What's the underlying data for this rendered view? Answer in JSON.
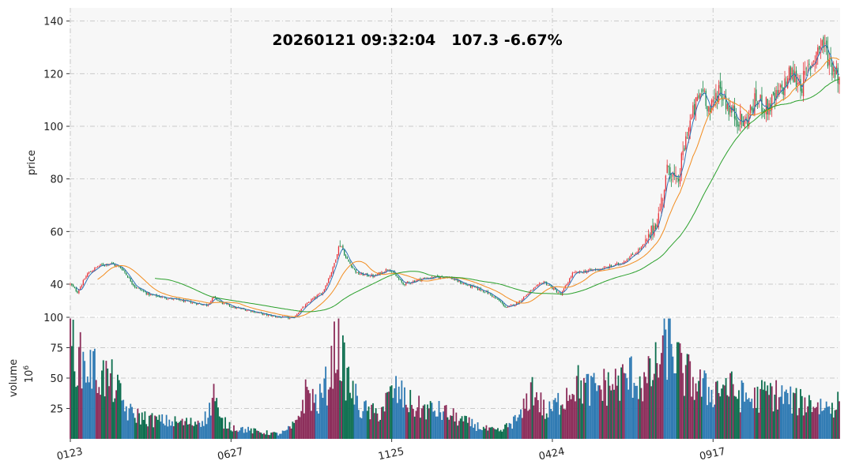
{
  "chart_data": {
    "type": "candlestick",
    "title": "20260121 09:32:04   107.3 -6.67%",
    "price_panel": {
      "ylabel": "price",
      "ylim": [
        28,
        145
      ],
      "yticks": [
        40,
        60,
        80,
        100,
        120,
        140
      ]
    },
    "volume_panel": {
      "ylabel": "volume",
      "unit": "10^6",
      "unit_base": "10",
      "unit_exp": "6",
      "ylim": [
        0,
        100
      ],
      "yticks": [
        25,
        50,
        75,
        100
      ]
    },
    "x_ticks": [
      "0123",
      "0627",
      "1125",
      "0424",
      "0917"
    ],
    "colors": {
      "up": "#e8333a",
      "down": "#1a8a4a",
      "up_volume": "#8c2d5a",
      "down_volume": "#0c6e4e",
      "neutral_volume": "#2f7ab3",
      "ma_short": "#2c72b5",
      "ma_mid": "#f28c1f",
      "ma_long": "#2aa02b",
      "panel_bg": "#f7f7f7"
    },
    "price_anchors": [
      [
        0,
        40
      ],
      [
        5,
        37
      ],
      [
        12,
        44
      ],
      [
        20,
        47
      ],
      [
        28,
        48
      ],
      [
        36,
        46
      ],
      [
        45,
        39
      ],
      [
        55,
        36
      ],
      [
        65,
        35
      ],
      [
        75,
        34
      ],
      [
        85,
        33
      ],
      [
        95,
        32
      ],
      [
        100,
        35
      ],
      [
        105,
        33
      ],
      [
        115,
        31
      ],
      [
        125,
        30
      ],
      [
        135,
        28.5
      ],
      [
        145,
        27.5
      ],
      [
        155,
        27
      ],
      [
        160,
        30
      ],
      [
        168,
        34
      ],
      [
        176,
        37
      ],
      [
        183,
        46
      ],
      [
        188,
        56
      ],
      [
        192,
        50
      ],
      [
        200,
        44
      ],
      [
        212,
        43
      ],
      [
        222,
        46
      ],
      [
        232,
        40
      ],
      [
        245,
        42
      ],
      [
        262,
        43
      ],
      [
        275,
        40
      ],
      [
        290,
        37
      ],
      [
        298,
        34
      ],
      [
        304,
        31
      ],
      [
        312,
        33
      ],
      [
        320,
        37
      ],
      [
        330,
        41
      ],
      [
        342,
        36
      ],
      [
        350,
        44
      ],
      [
        360,
        45
      ],
      [
        372,
        46
      ],
      [
        384,
        48
      ],
      [
        394,
        52
      ],
      [
        402,
        56
      ],
      [
        410,
        66
      ],
      [
        417,
        85
      ],
      [
        423,
        77
      ],
      [
        430,
        98
      ],
      [
        436,
        108
      ],
      [
        441,
        115
      ],
      [
        446,
        105
      ],
      [
        452,
        115
      ],
      [
        460,
        106
      ],
      [
        470,
        101
      ],
      [
        478,
        110
      ],
      [
        486,
        107
      ],
      [
        494,
        112
      ],
      [
        502,
        120
      ],
      [
        510,
        116
      ],
      [
        518,
        126
      ],
      [
        524,
        132
      ],
      [
        530,
        124
      ],
      [
        536,
        119
      ]
    ],
    "volume_anchors": [
      [
        0,
        85
      ],
      [
        6,
        64
      ],
      [
        14,
        58
      ],
      [
        22,
        52
      ],
      [
        30,
        46
      ],
      [
        40,
        22
      ],
      [
        55,
        16
      ],
      [
        70,
        14
      ],
      [
        85,
        13
      ],
      [
        96,
        18
      ],
      [
        100,
        40
      ],
      [
        104,
        15
      ],
      [
        115,
        9
      ],
      [
        130,
        6
      ],
      [
        145,
        4
      ],
      [
        150,
        6
      ],
      [
        157,
        12
      ],
      [
        165,
        40
      ],
      [
        172,
        28
      ],
      [
        180,
        48
      ],
      [
        186,
        82
      ],
      [
        192,
        52
      ],
      [
        202,
        25
      ],
      [
        214,
        20
      ],
      [
        226,
        40
      ],
      [
        240,
        26
      ],
      [
        260,
        22
      ],
      [
        275,
        14
      ],
      [
        290,
        8
      ],
      [
        300,
        6
      ],
      [
        306,
        12
      ],
      [
        314,
        18
      ],
      [
        322,
        42
      ],
      [
        332,
        20
      ],
      [
        342,
        32
      ],
      [
        352,
        46
      ],
      [
        362,
        40
      ],
      [
        372,
        43
      ],
      [
        382,
        46
      ],
      [
        392,
        52
      ],
      [
        400,
        44
      ],
      [
        408,
        58
      ],
      [
        418,
        82
      ],
      [
        426,
        55
      ],
      [
        436,
        46
      ],
      [
        446,
        38
      ],
      [
        456,
        45
      ],
      [
        466,
        36
      ],
      [
        476,
        32
      ],
      [
        486,
        38
      ],
      [
        496,
        35
      ],
      [
        506,
        30
      ],
      [
        516,
        30
      ],
      [
        526,
        26
      ],
      [
        536,
        30
      ]
    ],
    "bar_count": 537
  }
}
